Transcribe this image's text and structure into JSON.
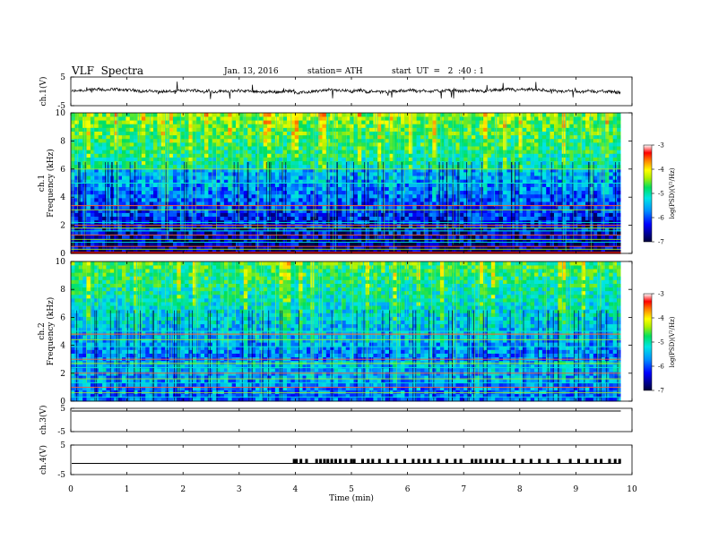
{
  "header": {
    "title": "VLF  Spectra",
    "date": "Jan. 13, 2016",
    "station": "station= ATH",
    "start": "start  UT  =   2  :40 : 1"
  },
  "chart_data": [
    {
      "type": "line",
      "ylabel": "ch.1(V)",
      "ylim": [
        -5,
        5
      ],
      "yticks": [
        "5",
        "-5"
      ],
      "description_values": {
        "x_range_min": [
          0,
          9.8
        ],
        "approx_level": 0
      }
    },
    {
      "type": "heatmap",
      "ylabel": "ch.1\nFrequency  (kHz)",
      "ylabel_top": "ch.1",
      "ylabel_bottom": "Frequency  (kHz)",
      "ylim": [
        0,
        10
      ],
      "yticks": [
        "0",
        "2",
        "4",
        "6",
        "8",
        "10"
      ],
      "x_range_min": [
        0,
        9.8
      ],
      "colorbar": {
        "label": "log(PSD)(V²/Hz)",
        "ticks": [
          "-3",
          "-4",
          "-5",
          "-6",
          "-7"
        ],
        "range": [
          -7,
          -3
        ]
      },
      "lines_khz": [
        0.1,
        0.3,
        0.5,
        0.8,
        1.0,
        1.3,
        1.6,
        1.8,
        2.0,
        2.2,
        3.1,
        3.4,
        5.0,
        6.0
      ]
    },
    {
      "type": "heatmap",
      "ylabel_top": "ch.2",
      "ylabel_bottom": "Frequency  (kHz)",
      "ylim": [
        0,
        10
      ],
      "yticks": [
        "0",
        "2",
        "4",
        "6",
        "8",
        "10"
      ],
      "x_range_min": [
        0,
        9.8
      ],
      "colorbar": {
        "label": "log(PSD)(V²/Hz)",
        "ticks": [
          "-3",
          "-4",
          "-5",
          "-6",
          "-7"
        ],
        "range": [
          -7,
          -3
        ]
      },
      "lines_khz": [
        0.3,
        0.6,
        1.0,
        1.3,
        1.6,
        2.0,
        2.4,
        2.7,
        3.0,
        3.9,
        4.4,
        4.8,
        5.0
      ]
    },
    {
      "type": "line",
      "ylabel": "ch.3(V)",
      "ylim": [
        -5,
        5
      ],
      "yticks": [
        "5",
        "-5"
      ],
      "approx_level": 5
    },
    {
      "type": "line",
      "ylabel": "ch.4(V)",
      "ylim": [
        -5,
        5
      ],
      "yticks": [
        "5",
        "-5"
      ],
      "baseline": 0,
      "pulse_times_min": [
        3.98,
        4.02,
        4.1,
        4.2,
        4.38,
        4.45,
        4.52,
        4.58,
        4.65,
        4.72,
        4.8,
        4.9,
        5.0,
        5.05,
        5.2,
        5.3,
        5.38,
        5.5,
        5.65,
        5.8,
        5.95,
        6.1,
        6.2,
        6.3,
        6.4,
        6.55,
        6.7,
        6.85,
        6.95,
        7.15,
        7.22,
        7.3,
        7.4,
        7.5,
        7.6,
        7.7,
        7.9,
        8.05,
        8.2,
        8.35,
        8.5,
        8.7,
        8.9,
        9.05,
        9.2,
        9.35,
        9.45,
        9.6,
        9.7,
        9.78
      ]
    }
  ],
  "xaxis": {
    "label": "Time  (min)",
    "ticks": [
      "0",
      "1",
      "2",
      "3",
      "4",
      "5",
      "6",
      "7",
      "8",
      "9",
      "10"
    ],
    "range": [
      0,
      10
    ]
  }
}
